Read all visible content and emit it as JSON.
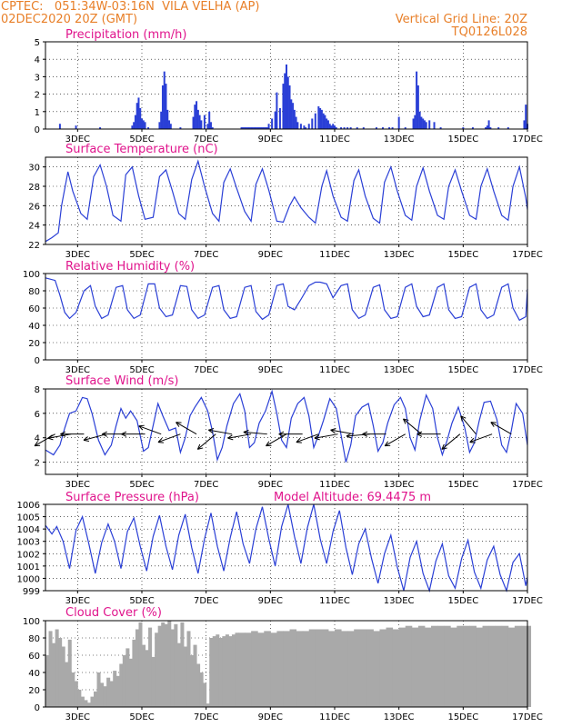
{
  "header": {
    "line1_left": "CPTEC:   051:34W-03:16N  VILA VELHA (AP)",
    "line2_left": "02DEC2020 20Z (GMT)",
    "line1_right": "Vertical Grid Line: 20Z",
    "line2_right": "TQ0126L028"
  },
  "colors": {
    "header": "#e87f28",
    "title": "#e0148c",
    "line": "#2a3fd6",
    "cloud": "#a9a9a9",
    "grid": "#000000"
  },
  "x_axis": {
    "start_day": 2.0,
    "end_day": 17.0,
    "ticks": [
      {
        "day": 3,
        "label": "3DEC"
      },
      {
        "day": 5,
        "label": "5DEC"
      },
      {
        "day": 7,
        "label": "7DEC"
      },
      {
        "day": 9,
        "label": "9DEC"
      },
      {
        "day": 11,
        "label": "11DEC"
      },
      {
        "day": 13,
        "label": "13DEC"
      },
      {
        "day": 15,
        "label": "15DEC"
      },
      {
        "day": 17,
        "label": "17DEC"
      }
    ]
  },
  "chart_data": [
    {
      "type": "bar",
      "title": "Precipitation (mm/h)",
      "ylim": [
        0,
        5
      ],
      "yticks": [
        0,
        1,
        2,
        3,
        4,
        5
      ],
      "x_day": [
        2.45,
        2.95,
        3.7,
        4.7,
        4.75,
        4.8,
        4.85,
        4.9,
        4.95,
        5.0,
        5.05,
        5.1,
        5.2,
        5.55,
        5.6,
        5.65,
        5.7,
        5.75,
        5.8,
        5.85,
        5.9,
        6.2,
        6.6,
        6.65,
        6.7,
        6.75,
        6.8,
        6.85,
        6.95,
        7.05,
        7.1,
        7.15,
        7.2,
        8.1,
        8.15,
        8.2,
        8.25,
        8.3,
        8.35,
        8.4,
        8.45,
        8.5,
        8.55,
        8.6,
        8.65,
        8.7,
        8.75,
        8.8,
        8.85,
        8.9,
        8.95,
        9.05,
        9.15,
        9.2,
        9.3,
        9.4,
        9.45,
        9.5,
        9.55,
        9.6,
        9.65,
        9.7,
        9.75,
        9.8,
        9.85,
        9.95,
        10.05,
        10.1,
        10.2,
        10.3,
        10.4,
        10.5,
        10.55,
        10.6,
        10.65,
        10.7,
        10.75,
        10.8,
        10.85,
        10.9,
        10.95,
        11.0,
        11.05,
        11.2,
        11.3,
        11.4,
        11.5,
        11.7,
        11.9,
        12.3,
        12.5,
        12.7,
        12.8,
        13.0,
        13.2,
        13.45,
        13.5,
        13.55,
        13.6,
        13.65,
        13.7,
        13.75,
        13.8,
        13.85,
        13.95,
        14.1,
        14.3,
        15.0,
        15.3,
        15.7,
        15.75,
        15.8,
        15.85,
        16.1,
        16.4,
        16.9,
        16.95,
        17.0
      ],
      "values": [
        0.3,
        0.2,
        0.1,
        0.2,
        0.4,
        0.8,
        1.5,
        1.8,
        1.2,
        0.6,
        0.5,
        0.4,
        0.1,
        0.4,
        1.0,
        2.5,
        3.3,
        2.6,
        1.1,
        0.5,
        0.3,
        0.1,
        0.7,
        1.4,
        1.6,
        1.1,
        0.8,
        0.5,
        0.8,
        0.3,
        1.0,
        0.4,
        0.1,
        0.1,
        0.1,
        0.1,
        0.1,
        0.1,
        0.1,
        0.1,
        0.1,
        0.1,
        0.1,
        0.1,
        0.1,
        0.1,
        0.1,
        0.1,
        0.1,
        0.1,
        0.3,
        0.6,
        1.0,
        2.1,
        1.2,
        2.6,
        3.2,
        3.7,
        3.0,
        2.5,
        1.7,
        1.5,
        1.1,
        0.7,
        0.4,
        0.3,
        0.2,
        0.1,
        0.3,
        0.6,
        0.9,
        1.3,
        1.2,
        1.1,
        0.9,
        0.8,
        0.6,
        0.5,
        0.3,
        0.2,
        0.3,
        0.2,
        0.1,
        0.1,
        0.1,
        0.1,
        0.1,
        0.1,
        0.1,
        0.1,
        0.1,
        0.1,
        0.1,
        0.7,
        0.1,
        0.6,
        0.8,
        3.3,
        2.5,
        1.0,
        0.7,
        0.6,
        0.5,
        0.4,
        0.5,
        0.4,
        0.1,
        0.1,
        0.1,
        0.1,
        0.2,
        0.5,
        0.1,
        0.1,
        0.1,
        0.5,
        1.4,
        0.3
      ]
    },
    {
      "type": "line",
      "title": "Surface Temperature (nC)",
      "ylim": [
        22,
        31
      ],
      "yticks": [
        22,
        24,
        26,
        28,
        30
      ],
      "x_day": [
        2.0,
        2.2,
        2.4,
        2.5,
        2.7,
        2.85,
        3.1,
        3.3,
        3.5,
        3.7,
        3.9,
        4.1,
        4.35,
        4.5,
        4.7,
        4.9,
        5.1,
        5.35,
        5.55,
        5.75,
        5.95,
        6.15,
        6.35,
        6.55,
        6.75,
        6.95,
        7.2,
        7.4,
        7.55,
        7.75,
        7.95,
        8.2,
        8.4,
        8.55,
        8.75,
        8.95,
        9.2,
        9.4,
        9.6,
        9.75,
        9.95,
        10.2,
        10.4,
        10.6,
        10.75,
        10.95,
        11.2,
        11.4,
        11.6,
        11.75,
        11.95,
        12.2,
        12.4,
        12.55,
        12.75,
        12.95,
        13.2,
        13.4,
        13.55,
        13.75,
        13.95,
        14.2,
        14.4,
        14.55,
        14.75,
        14.95,
        15.2,
        15.4,
        15.55,
        15.75,
        15.95,
        16.2,
        16.4,
        16.55,
        16.75,
        16.95,
        17.0
      ],
      "values": [
        22.3,
        22.7,
        23.2,
        26.0,
        29.5,
        27.5,
        25.2,
        24.6,
        29.0,
        30.2,
        28.0,
        25.0,
        24.4,
        29.2,
        30.0,
        27.0,
        24.6,
        24.8,
        29.0,
        29.7,
        27.5,
        25.2,
        24.6,
        28.7,
        30.6,
        28.0,
        25.2,
        24.4,
        28.4,
        29.8,
        27.8,
        25.4,
        24.4,
        28.2,
        29.8,
        27.6,
        24.4,
        24.3,
        26.0,
        26.9,
        25.8,
        24.8,
        24.2,
        28.0,
        29.6,
        27.0,
        24.8,
        24.4,
        28.6,
        29.7,
        27.0,
        24.7,
        24.2,
        28.4,
        30.0,
        27.5,
        25.0,
        24.5,
        28.0,
        29.9,
        27.5,
        25.0,
        24.6,
        28.0,
        29.7,
        27.5,
        25.0,
        24.6,
        28.0,
        29.8,
        27.5,
        25.0,
        24.5,
        28.0,
        30.0,
        26.8,
        25.6
      ]
    },
    {
      "type": "line",
      "title": "Relative Humidity (%)",
      "ylim": [
        0,
        100
      ],
      "yticks": [
        0,
        20,
        40,
        60,
        80,
        100
      ],
      "x_day": [
        2.0,
        2.3,
        2.45,
        2.6,
        2.75,
        2.95,
        3.2,
        3.4,
        3.55,
        3.75,
        3.95,
        4.2,
        4.4,
        4.55,
        4.75,
        4.95,
        5.2,
        5.4,
        5.55,
        5.75,
        5.95,
        6.2,
        6.4,
        6.55,
        6.75,
        6.95,
        7.2,
        7.4,
        7.55,
        7.75,
        7.95,
        8.2,
        8.4,
        8.55,
        8.75,
        8.95,
        9.2,
        9.4,
        9.55,
        9.75,
        9.95,
        10.2,
        10.4,
        10.55,
        10.75,
        10.95,
        11.2,
        11.4,
        11.55,
        11.75,
        11.95,
        12.2,
        12.4,
        12.55,
        12.75,
        12.95,
        13.2,
        13.4,
        13.55,
        13.75,
        13.95,
        14.2,
        14.4,
        14.55,
        14.75,
        14.95,
        15.2,
        15.4,
        15.55,
        15.75,
        15.95,
        16.2,
        16.4,
        16.55,
        16.75,
        16.95,
        17.0
      ],
      "values": [
        95,
        92,
        75,
        55,
        48,
        55,
        80,
        86,
        62,
        48,
        52,
        84,
        86,
        58,
        48,
        52,
        88,
        88,
        60,
        50,
        52,
        86,
        85,
        58,
        48,
        52,
        84,
        86,
        58,
        48,
        50,
        84,
        86,
        56,
        47,
        52,
        86,
        88,
        62,
        58,
        70,
        86,
        90,
        90,
        88,
        72,
        86,
        88,
        58,
        48,
        52,
        84,
        87,
        58,
        48,
        50,
        84,
        88,
        62,
        50,
        52,
        84,
        88,
        58,
        48,
        50,
        84,
        88,
        58,
        48,
        52,
        84,
        88,
        60,
        46,
        50,
        82
      ]
    },
    {
      "type": "line",
      "title": "Surface Wind (m/s)",
      "ylim": [
        1,
        8
      ],
      "yticks": [
        2,
        4,
        6,
        8
      ],
      "x_day": [
        2.0,
        2.25,
        2.45,
        2.6,
        2.75,
        2.95,
        3.15,
        3.3,
        3.45,
        3.65,
        3.85,
        4.05,
        4.2,
        4.35,
        4.5,
        4.65,
        4.85,
        5.05,
        5.2,
        5.35,
        5.5,
        5.65,
        5.85,
        6.05,
        6.2,
        6.35,
        6.5,
        6.65,
        6.85,
        7.05,
        7.2,
        7.35,
        7.5,
        7.65,
        7.85,
        8.05,
        8.2,
        8.35,
        8.5,
        8.65,
        8.85,
        9.05,
        9.2,
        9.35,
        9.5,
        9.65,
        9.85,
        10.05,
        10.2,
        10.35,
        10.5,
        10.65,
        10.85,
        11.05,
        11.2,
        11.35,
        11.5,
        11.65,
        11.85,
        12.05,
        12.2,
        12.35,
        12.5,
        12.65,
        12.85,
        13.05,
        13.2,
        13.35,
        13.5,
        13.65,
        13.85,
        14.05,
        14.2,
        14.35,
        14.5,
        14.65,
        14.85,
        15.05,
        15.2,
        15.35,
        15.5,
        15.65,
        15.85,
        16.05,
        16.2,
        16.35,
        16.5,
        16.65,
        16.85,
        17.0
      ],
      "values": [
        3.0,
        2.6,
        3.4,
        4.8,
        6.0,
        6.2,
        7.3,
        7.2,
        6.0,
        3.8,
        2.6,
        3.4,
        5.0,
        6.4,
        5.6,
        6.2,
        5.4,
        2.9,
        3.2,
        5.0,
        6.8,
        5.8,
        4.6,
        4.8,
        2.8,
        4.0,
        5.8,
        6.5,
        7.3,
        6.2,
        4.5,
        2.2,
        3.2,
        5.0,
        6.8,
        7.6,
        6.2,
        3.2,
        3.6,
        5.2,
        6.2,
        7.8,
        6.0,
        3.8,
        3.2,
        5.6,
        6.8,
        7.3,
        5.8,
        3.2,
        4.2,
        5.4,
        7.2,
        6.4,
        4.2,
        2.0,
        3.4,
        5.8,
        6.5,
        6.8,
        5.0,
        2.9,
        3.6,
        5.2,
        6.7,
        7.3,
        6.4,
        4.0,
        3.0,
        5.4,
        7.5,
        6.4,
        4.0,
        2.6,
        3.8,
        5.2,
        6.5,
        4.8,
        2.8,
        3.6,
        5.4,
        6.9,
        7.0,
        5.5,
        3.4,
        2.8,
        4.6,
        6.8,
        6.0,
        3.4
      ]
    },
    {
      "type": "line",
      "title": "Surface Pressure (hPa)",
      "annotation": "Model Altitude: 69.4475 m",
      "ylim": [
        999,
        1006
      ],
      "yticks": [
        999,
        1000,
        1001,
        1002,
        1003,
        1004,
        1005,
        1006
      ],
      "x_day": [
        2.0,
        2.2,
        2.35,
        2.55,
        2.75,
        2.95,
        3.15,
        3.35,
        3.55,
        3.75,
        3.95,
        4.15,
        4.35,
        4.55,
        4.75,
        4.95,
        5.15,
        5.35,
        5.55,
        5.75,
        5.95,
        6.15,
        6.35,
        6.55,
        6.75,
        6.95,
        7.15,
        7.35,
        7.55,
        7.75,
        7.95,
        8.15,
        8.35,
        8.55,
        8.75,
        8.95,
        9.15,
        9.35,
        9.55,
        9.75,
        9.95,
        10.15,
        10.35,
        10.55,
        10.75,
        10.95,
        11.15,
        11.35,
        11.55,
        11.75,
        11.95,
        12.15,
        12.35,
        12.55,
        12.75,
        12.95,
        13.15,
        13.35,
        13.55,
        13.75,
        13.95,
        14.15,
        14.35,
        14.55,
        14.75,
        14.95,
        15.15,
        15.35,
        15.55,
        15.75,
        15.95,
        16.15,
        16.35,
        16.55,
        16.75,
        16.95,
        17.0
      ],
      "values": [
        1004.3,
        1003.6,
        1004.2,
        1003.0,
        1000.8,
        1003.9,
        1005.0,
        1002.8,
        1000.4,
        1002.9,
        1004.4,
        1003.0,
        1000.8,
        1003.8,
        1004.9,
        1002.6,
        1000.6,
        1003.4,
        1005.1,
        1002.6,
        1000.7,
        1003.5,
        1005.2,
        1002.5,
        1000.4,
        1003.2,
        1005.3,
        1002.6,
        1000.6,
        1003.3,
        1005.4,
        1002.8,
        1001.2,
        1004.0,
        1005.8,
        1003.2,
        1001.0,
        1004.2,
        1006.2,
        1003.4,
        1001.2,
        1004.1,
        1006.3,
        1003.2,
        1001.2,
        1003.8,
        1005.5,
        1002.5,
        1000.3,
        1002.8,
        1004.0,
        1001.6,
        999.6,
        1002.0,
        1003.5,
        1000.9,
        999.0,
        1001.7,
        1003.0,
        1000.4,
        999.0,
        1001.4,
        1002.8,
        1000.2,
        999.2,
        1001.6,
        1003.1,
        1000.5,
        999.2,
        1001.5,
        1002.6,
        1000.3,
        999.0,
        1001.3,
        1002.0,
        999.4,
        1000.1
      ]
    },
    {
      "type": "bar",
      "title": "Cloud Cover (%)",
      "ylim": [
        0,
        100
      ],
      "yticks": [
        0,
        20,
        40,
        60,
        80,
        100
      ],
      "x_day": [
        2.0,
        2.1,
        2.2,
        2.3,
        2.4,
        2.5,
        2.6,
        2.7,
        2.8,
        2.9,
        3.0,
        3.1,
        3.2,
        3.3,
        3.4,
        3.5,
        3.6,
        3.7,
        3.8,
        3.9,
        4.0,
        4.1,
        4.2,
        4.3,
        4.4,
        4.5,
        4.6,
        4.7,
        4.8,
        4.9,
        5.0,
        5.1,
        5.2,
        5.3,
        5.4,
        5.5,
        5.6,
        5.7,
        5.8,
        5.9,
        6.0,
        6.1,
        6.2,
        6.3,
        6.4,
        6.5,
        6.6,
        6.7,
        6.8,
        6.9,
        7.0,
        7.1,
        7.2,
        7.3,
        7.4,
        7.5,
        7.6,
        7.7,
        7.8,
        7.9,
        8.0,
        8.2,
        8.4,
        8.6,
        8.8,
        9.0,
        9.2,
        9.4,
        9.6,
        9.8,
        10.0,
        10.2,
        10.4,
        10.6,
        10.8,
        11.0,
        11.2,
        11.4,
        11.6,
        11.8,
        12.0,
        12.2,
        12.4,
        12.6,
        12.8,
        13.0,
        13.2,
        13.4,
        13.6,
        13.8,
        14.0,
        14.2,
        14.4,
        14.6,
        14.8,
        15.0,
        15.2,
        15.4,
        15.6,
        15.8,
        16.0,
        16.2,
        16.4,
        16.6,
        16.8,
        17.0
      ],
      "values": [
        60,
        88,
        74,
        90,
        80,
        70,
        52,
        78,
        40,
        30,
        20,
        12,
        8,
        5,
        12,
        18,
        40,
        28,
        24,
        34,
        30,
        42,
        36,
        50,
        60,
        68,
        56,
        78,
        90,
        98,
        72,
        66,
        92,
        58,
        86,
        94,
        98,
        96,
        100,
        90,
        96,
        74,
        98,
        70,
        88,
        60,
        72,
        50,
        40,
        28,
        4,
        80,
        82,
        84,
        80,
        82,
        84,
        82,
        84,
        86,
        86,
        86,
        88,
        86,
        88,
        86,
        88,
        88,
        90,
        88,
        88,
        90,
        90,
        90,
        88,
        90,
        88,
        88,
        90,
        90,
        90,
        88,
        90,
        92,
        90,
        92,
        94,
        92,
        94,
        92,
        94,
        94,
        94,
        92,
        94,
        94,
        94,
        92,
        94,
        94,
        94,
        94,
        92,
        94,
        94,
        94
      ]
    }
  ],
  "wind_vectors": {
    "x_day": [
      2.3,
      2.8,
      3.2,
      3.9,
      4.5,
      5.1,
      5.6,
      6.2,
      6.7,
      7.3,
      7.8,
      8.4,
      8.9,
      9.5,
      10.0,
      10.5,
      11.1,
      11.6,
      12.1,
      12.6,
      13.2,
      13.7,
      14.3,
      14.9,
      15.4,
      15.9,
      16.5
    ],
    "angle_deg": [
      210,
      190,
      180,
      195,
      180,
      180,
      160,
      200,
      150,
      220,
      170,
      190,
      175,
      210,
      180,
      200,
      190,
      170,
      185,
      180,
      210,
      140,
      180,
      220,
      130,
      200,
      150
    ],
    "speed": [
      3.5,
      4.0,
      4.0,
      3.8,
      4.2,
      4.5,
      4.0,
      4.4,
      3.8,
      4.0,
      4.2,
      4.3,
      4.0,
      4.2,
      4.1,
      4.0,
      3.9,
      4.3,
      4.2,
      4.4,
      3.8,
      4.0,
      4.2,
      3.6,
      4.0,
      3.8,
      4.0
    ]
  }
}
